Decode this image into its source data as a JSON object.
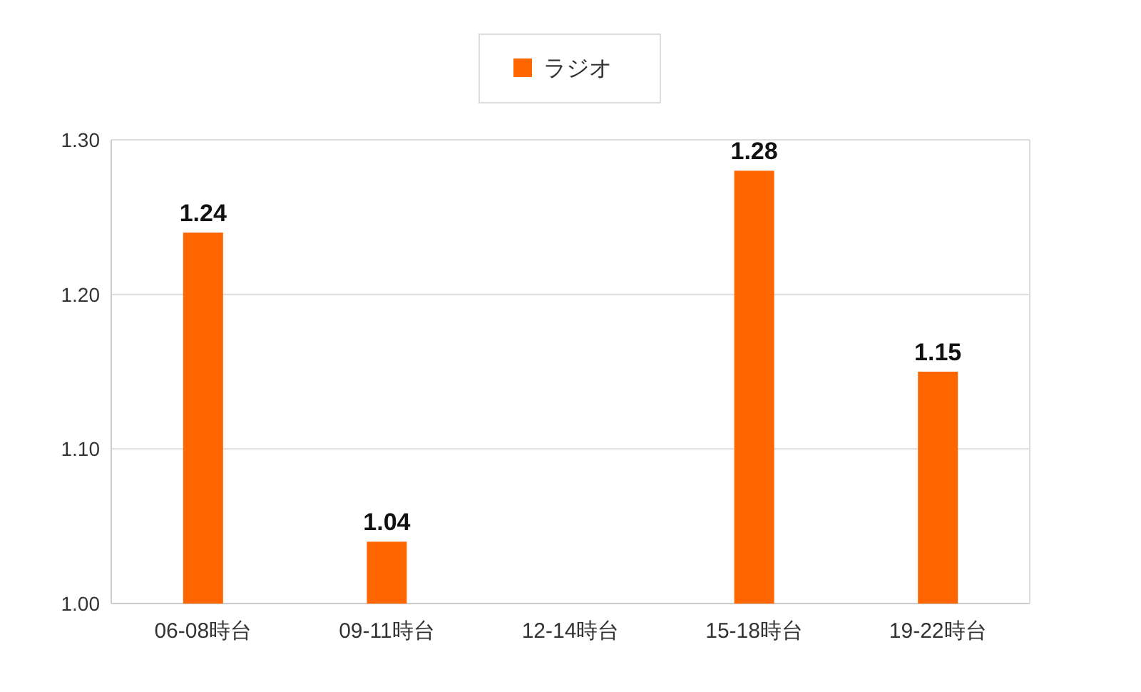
{
  "chart_data": {
    "type": "bar",
    "categories": [
      "06-08時台",
      "09-11時台",
      "12-14時台",
      "15-18時台",
      "19-22時台"
    ],
    "series": [
      {
        "name": "ラジオ",
        "color": "#ff6600",
        "values": [
          1.24,
          1.04,
          null,
          1.28,
          1.15
        ]
      }
    ],
    "ylim": [
      1.0,
      1.3
    ],
    "yticks": [
      {
        "value": 1.0,
        "label": "1.00"
      },
      {
        "value": 1.1,
        "label": "1.10"
      },
      {
        "value": 1.2,
        "label": "1.20"
      },
      {
        "value": 1.3,
        "label": "1.30"
      }
    ],
    "grid": "y",
    "legend": "top",
    "data_labels": true
  }
}
